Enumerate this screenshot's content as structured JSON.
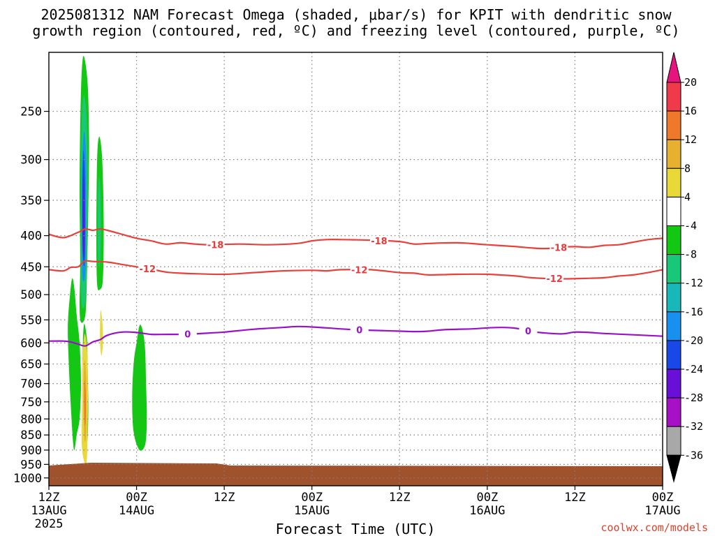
{
  "title": {
    "line1": "2025081312 NAM Forecast Omega (shaded, μbar/s) for KPIT with dendritic snow",
    "line2": "growth region (contoured, red, ºC) and freezing level (contoured, purple, ºC)"
  },
  "credit": "coolwx.com/models",
  "chart_data": {
    "type": "heatmap",
    "xlabel": "Forecast Time (UTC)",
    "x_range_hours": [
      0,
      84
    ],
    "x_ticks": [
      {
        "hour": 0,
        "label": "12Z",
        "sub": "13AUG",
        "sub2": "2025"
      },
      {
        "hour": 12,
        "label": "00Z",
        "sub": "14AUG",
        "sub2": ""
      },
      {
        "hour": 24,
        "label": "12Z",
        "sub": "",
        "sub2": ""
      },
      {
        "hour": 36,
        "label": "00Z",
        "sub": "15AUG",
        "sub2": ""
      },
      {
        "hour": 48,
        "label": "12Z",
        "sub": "",
        "sub2": ""
      },
      {
        "hour": 60,
        "label": "00Z",
        "sub": "16AUG",
        "sub2": ""
      },
      {
        "hour": 72,
        "label": "12Z",
        "sub": "",
        "sub2": ""
      },
      {
        "hour": 84,
        "label": "00Z",
        "sub": "17AUG",
        "sub2": ""
      }
    ],
    "y_scale": "log-pressure (hPa), inverted",
    "y_ticks": [
      250,
      300,
      350,
      400,
      450,
      500,
      550,
      600,
      650,
      700,
      750,
      800,
      850,
      900,
      950,
      1000
    ],
    "y_range": [
      200,
      1030
    ],
    "grid": true,
    "colorbar": {
      "labels": [
        "20",
        "16",
        "12",
        "8",
        "4",
        "-4",
        "-8",
        "-12",
        "-16",
        "-20",
        "-24",
        "-28",
        "-32",
        "-36"
      ],
      "colors": [
        "#f03a4a",
        "#f0782a",
        "#e8b030",
        "#e8d838",
        "#ffffff",
        "#12c812",
        "#18c878",
        "#18b8b8",
        "#1890f0",
        "#1848e8",
        "#6810d8",
        "#a810c8",
        "#a8a8a8"
      ],
      "top_arrow": "#e8147e",
      "bottom_arrow": "#000000"
    },
    "terrain_color": "#a0522d",
    "omega_areas": [
      {
        "color": "#12c812",
        "points": [
          [
            4.8,
            203
          ],
          [
            5.3,
            225
          ],
          [
            5.5,
            280
          ],
          [
            5.4,
            360
          ],
          [
            5.2,
            470
          ],
          [
            5.0,
            540
          ],
          [
            4.4,
            555
          ],
          [
            4.2,
            520
          ],
          [
            4.3,
            440
          ],
          [
            4.2,
            340
          ],
          [
            4.3,
            260
          ],
          [
            4.5,
            215
          ]
        ]
      },
      {
        "color": "#18c878",
        "points": [
          [
            4.8,
            235
          ],
          [
            5.2,
            260
          ],
          [
            5.3,
            330
          ],
          [
            5.2,
            430
          ],
          [
            5.0,
            510
          ],
          [
            4.5,
            520
          ],
          [
            4.4,
            440
          ],
          [
            4.4,
            330
          ],
          [
            4.5,
            260
          ]
        ]
      },
      {
        "color": "#1890f0",
        "points": [
          [
            4.8,
            270
          ],
          [
            5.1,
            300
          ],
          [
            5.1,
            380
          ],
          [
            5.0,
            460
          ],
          [
            4.6,
            470
          ],
          [
            4.5,
            400
          ],
          [
            4.5,
            320
          ]
        ]
      },
      {
        "color": "#1848e8",
        "points": [
          [
            4.75,
            290
          ],
          [
            4.95,
            330
          ],
          [
            4.95,
            420
          ],
          [
            4.8,
            450
          ],
          [
            4.6,
            410
          ],
          [
            4.6,
            330
          ]
        ]
      },
      {
        "color": "#6810d8",
        "points": [
          [
            4.75,
            320
          ],
          [
            4.85,
            360
          ],
          [
            4.85,
            420
          ],
          [
            4.7,
            430
          ],
          [
            4.65,
            380
          ]
        ]
      },
      {
        "color": "#12c812",
        "points": [
          [
            6.9,
            275
          ],
          [
            7.3,
            300
          ],
          [
            7.5,
            380
          ],
          [
            7.4,
            470
          ],
          [
            7.0,
            490
          ],
          [
            6.6,
            480
          ],
          [
            6.5,
            400
          ],
          [
            6.6,
            300
          ]
        ]
      },
      {
        "color": "#18c878",
        "points": [
          [
            6.9,
            320
          ],
          [
            7.1,
            350
          ],
          [
            7.1,
            420
          ],
          [
            6.9,
            450
          ],
          [
            6.7,
            420
          ],
          [
            6.7,
            350
          ]
        ]
      },
      {
        "color": "#12c812",
        "points": [
          [
            3.2,
            470
          ],
          [
            3.5,
            490
          ],
          [
            3.8,
            540
          ],
          [
            4.2,
            600
          ],
          [
            4.4,
            700
          ],
          [
            4.2,
            800
          ],
          [
            3.8,
            850
          ],
          [
            3.5,
            900
          ],
          [
            3.3,
            870
          ],
          [
            3.0,
            760
          ],
          [
            2.7,
            640
          ],
          [
            2.6,
            560
          ],
          [
            2.9,
            500
          ]
        ]
      },
      {
        "color": "#12c812",
        "points": [
          [
            4.8,
            560
          ],
          [
            5.2,
            590
          ],
          [
            5.3,
            650
          ],
          [
            5.4,
            760
          ],
          [
            5.3,
            860
          ],
          [
            5.0,
            900
          ],
          [
            4.7,
            870
          ],
          [
            4.6,
            760
          ],
          [
            4.6,
            640
          ]
        ]
      },
      {
        "color": "#e8d838",
        "points": [
          [
            4.9,
            580
          ],
          [
            5.25,
            620
          ],
          [
            5.35,
            720
          ],
          [
            5.3,
            830
          ],
          [
            5.2,
            930
          ],
          [
            4.9,
            945
          ],
          [
            4.5,
            880
          ],
          [
            4.55,
            750
          ],
          [
            4.6,
            640
          ]
        ]
      },
      {
        "color": "#e8b030",
        "points": [
          [
            4.9,
            640
          ],
          [
            5.1,
            680
          ],
          [
            5.15,
            760
          ],
          [
            5.1,
            850
          ],
          [
            4.9,
            870
          ],
          [
            4.75,
            800
          ],
          [
            4.75,
            700
          ]
        ]
      },
      {
        "color": "#f0782a",
        "points": [
          [
            4.9,
            690
          ],
          [
            5.05,
            730
          ],
          [
            5.05,
            800
          ],
          [
            4.95,
            820
          ],
          [
            4.85,
            780
          ],
          [
            4.85,
            720
          ]
        ]
      },
      {
        "color": "#e8d838",
        "points": [
          [
            7.1,
            530
          ],
          [
            7.35,
            560
          ],
          [
            7.4,
            600
          ],
          [
            7.2,
            630
          ],
          [
            7.0,
            600
          ],
          [
            7.0,
            560
          ]
        ]
      },
      {
        "color": "#12c812",
        "points": [
          [
            12.5,
            560
          ],
          [
            13.1,
            600
          ],
          [
            13.3,
            700
          ],
          [
            13.4,
            800
          ],
          [
            13.2,
            880
          ],
          [
            12.4,
            900
          ],
          [
            11.6,
            840
          ],
          [
            11.4,
            740
          ],
          [
            11.6,
            650
          ],
          [
            12.0,
            600
          ]
        ]
      }
    ],
    "contours": [
      {
        "name": "-18",
        "color": "#e8403a",
        "label_hours": [
          22.8,
          45.2,
          69.8
        ],
        "points": [
          [
            0,
            398
          ],
          [
            2,
            403
          ],
          [
            4,
            395
          ],
          [
            5,
            390
          ],
          [
            6,
            392
          ],
          [
            7,
            390
          ],
          [
            8,
            392
          ],
          [
            10,
            398
          ],
          [
            12,
            404
          ],
          [
            14,
            408
          ],
          [
            16,
            413
          ],
          [
            18,
            411
          ],
          [
            20,
            413
          ],
          [
            22,
            414
          ],
          [
            26,
            413
          ],
          [
            30,
            414
          ],
          [
            34,
            412
          ],
          [
            36,
            408
          ],
          [
            38,
            406
          ],
          [
            40,
            406
          ],
          [
            44,
            407
          ],
          [
            48,
            409
          ],
          [
            50,
            413
          ],
          [
            52,
            412
          ],
          [
            56,
            411
          ],
          [
            60,
            414
          ],
          [
            64,
            417
          ],
          [
            66,
            419
          ],
          [
            68,
            420
          ],
          [
            70,
            418
          ],
          [
            72,
            417
          ],
          [
            74,
            418
          ],
          [
            76,
            415
          ],
          [
            78,
            414
          ],
          [
            80,
            410
          ],
          [
            82,
            406
          ],
          [
            84,
            404
          ]
        ]
      },
      {
        "name": "-12",
        "color": "#e8403a",
        "label_hours": [
          13.5,
          42.5,
          69.2
        ],
        "points": [
          [
            0,
            455
          ],
          [
            2,
            457
          ],
          [
            3,
            451
          ],
          [
            4,
            450
          ],
          [
            4.8,
            441
          ],
          [
            5.2,
            440
          ],
          [
            6,
            441
          ],
          [
            8,
            442
          ],
          [
            10,
            446
          ],
          [
            12,
            450
          ],
          [
            14,
            454
          ],
          [
            16,
            459
          ],
          [
            18,
            461
          ],
          [
            20,
            462
          ],
          [
            24,
            463
          ],
          [
            28,
            460
          ],
          [
            32,
            457
          ],
          [
            36,
            456
          ],
          [
            38,
            457
          ],
          [
            40,
            455
          ],
          [
            44,
            455
          ],
          [
            48,
            460
          ],
          [
            50,
            461
          ],
          [
            52,
            464
          ],
          [
            56,
            463
          ],
          [
            60,
            463
          ],
          [
            64,
            466
          ],
          [
            66,
            469
          ],
          [
            70,
            471
          ],
          [
            74,
            470
          ],
          [
            76,
            469
          ],
          [
            78,
            466
          ],
          [
            80,
            464
          ],
          [
            82,
            460
          ],
          [
            84,
            455
          ]
        ]
      },
      {
        "name": "0",
        "color": "#9a10c8",
        "label_hours": [
          19.0,
          42.5,
          65.6
        ],
        "points": [
          [
            0,
            596
          ],
          [
            2,
            596
          ],
          [
            3,
            598
          ],
          [
            4,
            603
          ],
          [
            5,
            607
          ],
          [
            6,
            598
          ],
          [
            7,
            593
          ],
          [
            8,
            583
          ],
          [
            10,
            576
          ],
          [
            12,
            577
          ],
          [
            14,
            581
          ],
          [
            16,
            581
          ],
          [
            18,
            581
          ],
          [
            20,
            580
          ],
          [
            22,
            578
          ],
          [
            24,
            576
          ],
          [
            28,
            570
          ],
          [
            32,
            566
          ],
          [
            34,
            564
          ],
          [
            36,
            565
          ],
          [
            38,
            567
          ],
          [
            42,
            571
          ],
          [
            46,
            573
          ],
          [
            50,
            575
          ],
          [
            52,
            574
          ],
          [
            54,
            571
          ],
          [
            58,
            569
          ],
          [
            60,
            567
          ],
          [
            62,
            566
          ],
          [
            64,
            568
          ],
          [
            66,
            575
          ],
          [
            70,
            580
          ],
          [
            72,
            576
          ],
          [
            74,
            577
          ],
          [
            76,
            579
          ],
          [
            80,
            582
          ],
          [
            84,
            585
          ]
        ]
      }
    ]
  }
}
